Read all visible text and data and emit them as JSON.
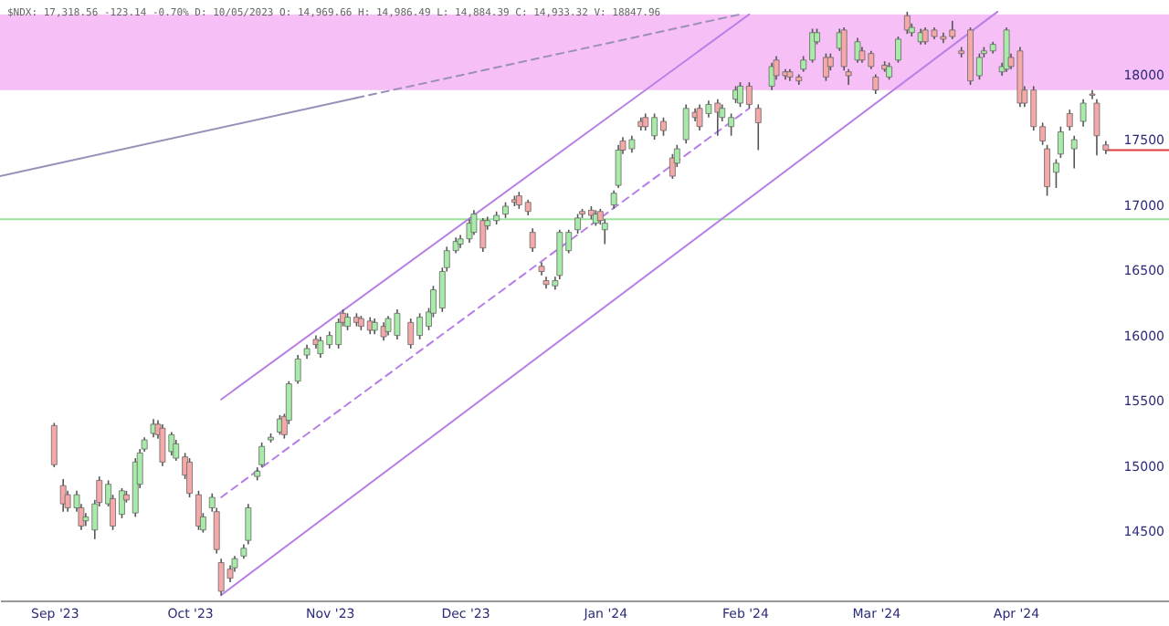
{
  "chart_data": {
    "type": "candlestick",
    "title": "$NDX: 17,318.56 -123.14 -0.70% D: 10/05/2023 O: 14,969.66 H: 14,986.49 L: 14,884.39 C: 14,933.32 V: 18847.96",
    "x": [
      "2023-09-01",
      "2023-09-03",
      "2023-09-04",
      "2023-09-06",
      "2023-09-07",
      "2023-09-08",
      "2023-09-10",
      "2023-09-11",
      "2023-09-13",
      "2023-09-14",
      "2023-09-16",
      "2023-09-17",
      "2023-09-19",
      "2023-09-20",
      "2023-09-21",
      "2023-09-23",
      "2023-09-24",
      "2023-09-25",
      "2023-09-27",
      "2023-09-28",
      "2023-09-30",
      "2023-10-01",
      "2023-10-03",
      "2023-10-04",
      "2023-10-06",
      "2023-10-07",
      "2023-10-08",
      "2023-10-10",
      "2023-10-11",
      "2023-10-13",
      "2023-10-14",
      "2023-10-16",
      "2023-10-17",
      "2023-10-19",
      "2023-10-21",
      "2023-10-22",
      "2023-10-23",
      "2023-10-25",
      "2023-10-27",
      "2023-10-29",
      "2023-10-30",
      "2023-11-01",
      "2023-11-03",
      "2023-11-04",
      "2023-11-05",
      "2023-11-07",
      "2023-11-08",
      "2023-11-10",
      "2023-11-11",
      "2023-11-13",
      "2023-11-14",
      "2023-11-16",
      "2023-11-19",
      "2023-11-21",
      "2023-11-23",
      "2023-11-24",
      "2023-11-26",
      "2023-11-27",
      "2023-11-29",
      "2023-11-30",
      "2023-12-02",
      "2023-12-03",
      "2023-12-05",
      "2023-12-06",
      "2023-12-08",
      "2023-12-10",
      "2023-12-12",
      "2023-12-13",
      "2023-12-15",
      "2023-12-16",
      "2023-12-18",
      "2023-12-19",
      "2023-12-21",
      "2023-12-22",
      "2023-12-24",
      "2023-12-26",
      "2023-12-27",
      "2023-12-29",
      "2023-12-30",
      "2023-12-31",
      "2024-01-01",
      "2024-01-03",
      "2024-01-04",
      "2024-01-05",
      "2024-01-07",
      "2024-01-09",
      "2024-01-10",
      "2024-01-12",
      "2024-01-14",
      "2024-01-16",
      "2024-01-17",
      "2024-01-19",
      "2024-01-21",
      "2024-01-22",
      "2024-01-24",
      "2024-01-26",
      "2024-01-27",
      "2024-01-29",
      "2024-01-30",
      "2024-01-31",
      "2024-02-02",
      "2024-02-04",
      "2024-02-07",
      "2024-02-08",
      "2024-02-10",
      "2024-02-11",
      "2024-02-13",
      "2024-02-14",
      "2024-02-16",
      "2024-02-17",
      "2024-02-19",
      "2024-02-20",
      "2024-02-22",
      "2024-02-23",
      "2024-02-24",
      "2024-02-26",
      "2024-02-27",
      "2024-02-29",
      "2024-03-01",
      "2024-03-03",
      "2024-03-04",
      "2024-03-06",
      "2024-03-08",
      "2024-03-09",
      "2024-03-11",
      "2024-03-12",
      "2024-03-14",
      "2024-03-16",
      "2024-03-18",
      "2024-03-20",
      "2024-03-22",
      "2024-03-24",
      "2024-03-25",
      "2024-03-27",
      "2024-03-29",
      "2024-03-30",
      "2024-03-31",
      "2024-04-02",
      "2024-04-03",
      "2024-04-05",
      "2024-04-07",
      "2024-04-08",
      "2024-04-10",
      "2024-04-11",
      "2024-04-13",
      "2024-04-14",
      "2024-04-16",
      "2024-04-18",
      "2024-04-19",
      "2024-04-21"
    ],
    "ohlc": [
      [
        15310,
        15330,
        14990,
        15010
      ],
      [
        14850,
        14900,
        14650,
        14710
      ],
      [
        14780,
        14810,
        14650,
        14680
      ],
      [
        14680,
        14810,
        14650,
        14780
      ],
      [
        14680,
        14710,
        14510,
        14540
      ],
      [
        14580,
        14640,
        14540,
        14610
      ],
      [
        14510,
        14740,
        14440,
        14710
      ],
      [
        14890,
        14920,
        14690,
        14720
      ],
      [
        14710,
        14890,
        14690,
        14860
      ],
      [
        14750,
        14780,
        14510,
        14540
      ],
      [
        14630,
        14830,
        14600,
        14810
      ],
      [
        14780,
        14810,
        14720,
        14740
      ],
      [
        14640,
        15060,
        14610,
        15030
      ],
      [
        14860,
        15130,
        14830,
        15100
      ],
      [
        15130,
        15220,
        15110,
        15200
      ],
      [
        15250,
        15360,
        15220,
        15320
      ],
      [
        15320,
        15350,
        15210,
        15240
      ],
      [
        15290,
        15320,
        15000,
        15030
      ],
      [
        15110,
        15260,
        15080,
        15240
      ],
      [
        15060,
        15200,
        15040,
        15170
      ],
      [
        15070,
        15100,
        14900,
        14930
      ],
      [
        15030,
        15060,
        14760,
        14790
      ],
      [
        14780,
        14810,
        14510,
        14540
      ],
      [
        14510,
        14640,
        14490,
        14610
      ],
      [
        14680,
        14790,
        14650,
        14760
      ],
      [
        14650,
        14680,
        14330,
        14360
      ],
      [
        14260,
        14290,
        14010,
        14040
      ],
      [
        14210,
        14240,
        14110,
        14140
      ],
      [
        14220,
        14310,
        14190,
        14290
      ],
      [
        14310,
        14400,
        14290,
        14370
      ],
      [
        14430,
        14710,
        14400,
        14680
      ],
      [
        14920,
        14990,
        14890,
        14960
      ],
      [
        15010,
        15180,
        14990,
        15150
      ],
      [
        15200,
        15250,
        15180,
        15220
      ],
      [
        15260,
        15390,
        15240,
        15360
      ],
      [
        15380,
        15400,
        15210,
        15240
      ],
      [
        15350,
        15650,
        15320,
        15630
      ],
      [
        15650,
        15850,
        15630,
        15820
      ],
      [
        15850,
        15930,
        15820,
        15900
      ],
      [
        15970,
        16000,
        15900,
        15930
      ],
      [
        15860,
        15990,
        15830,
        15960
      ],
      [
        15930,
        16030,
        15900,
        16000
      ],
      [
        15930,
        16130,
        15900,
        16100
      ],
      [
        16170,
        16200,
        16070,
        16100
      ],
      [
        16070,
        16170,
        16040,
        16140
      ],
      [
        16140,
        16170,
        16070,
        16100
      ],
      [
        16130,
        16150,
        16040,
        16070
      ],
      [
        16110,
        16140,
        16010,
        16040
      ],
      [
        16040,
        16130,
        16010,
        16100
      ],
      [
        16070,
        16100,
        15960,
        15990
      ],
      [
        16030,
        16150,
        16000,
        16130
      ],
      [
        16000,
        16200,
        15970,
        16170
      ],
      [
        16100,
        16130,
        15900,
        15930
      ],
      [
        16000,
        16170,
        15970,
        16140
      ],
      [
        16070,
        16210,
        16040,
        16180
      ],
      [
        16170,
        16380,
        16140,
        16350
      ],
      [
        16210,
        16520,
        16180,
        16490
      ],
      [
        16520,
        16680,
        16490,
        16650
      ],
      [
        16650,
        16750,
        16630,
        16720
      ],
      [
        16700,
        16770,
        16670,
        16740
      ],
      [
        16740,
        16890,
        16710,
        16860
      ],
      [
        16790,
        16960,
        16770,
        16930
      ],
      [
        16880,
        16900,
        16640,
        16670
      ],
      [
        16840,
        16910,
        16810,
        16880
      ],
      [
        16880,
        16950,
        16850,
        16920
      ],
      [
        16930,
        17020,
        16900,
        16990
      ],
      [
        17040,
        17070,
        16990,
        17020
      ],
      [
        17070,
        17100,
        16970,
        17000
      ],
      [
        17020,
        17040,
        16920,
        16950
      ],
      [
        16790,
        16820,
        16640,
        16670
      ],
      [
        16530,
        16560,
        16460,
        16490
      ],
      [
        16420,
        16450,
        16360,
        16390
      ],
      [
        16380,
        16450,
        16350,
        16420
      ],
      [
        16460,
        16810,
        16430,
        16790
      ],
      [
        16650,
        16810,
        16630,
        16790
      ],
      [
        16810,
        16930,
        16780,
        16900
      ],
      [
        16950,
        16970,
        16900,
        16930
      ],
      [
        16960,
        16990,
        16890,
        16920
      ],
      [
        16860,
        16960,
        16840,
        16930
      ],
      [
        16950,
        16970,
        16850,
        16880
      ],
      [
        16810,
        16890,
        16700,
        16860
      ],
      [
        17000,
        17110,
        16970,
        17090
      ],
      [
        17150,
        17460,
        17130,
        17420
      ],
      [
        17490,
        17520,
        17390,
        17420
      ],
      [
        17430,
        17530,
        17400,
        17500
      ],
      [
        17640,
        17670,
        17570,
        17600
      ],
      [
        17670,
        17700,
        17570,
        17600
      ],
      [
        17530,
        17700,
        17500,
        17670
      ],
      [
        17640,
        17670,
        17530,
        17570
      ],
      [
        17360,
        17390,
        17200,
        17220
      ],
      [
        17320,
        17460,
        17290,
        17430
      ],
      [
        17500,
        17770,
        17470,
        17740
      ],
      [
        17710,
        17740,
        17640,
        17670
      ],
      [
        17740,
        17770,
        17570,
        17600
      ],
      [
        17700,
        17800,
        17670,
        17770
      ],
      [
        17780,
        17810,
        17530,
        17710
      ],
      [
        17670,
        17770,
        17640,
        17740
      ],
      [
        17600,
        17700,
        17530,
        17670
      ],
      [
        17810,
        17910,
        17780,
        17880
      ],
      [
        17780,
        17940,
        17750,
        17910
      ],
      [
        17910,
        17940,
        17740,
        17770
      ],
      [
        17740,
        17770,
        17420,
        17630
      ],
      [
        17910,
        18090,
        17880,
        18060
      ],
      [
        18110,
        18140,
        17960,
        17990
      ],
      [
        18020,
        18040,
        17960,
        17990
      ],
      [
        18020,
        18040,
        17950,
        17980
      ],
      [
        17980,
        18000,
        17920,
        17950
      ],
      [
        18040,
        18140,
        18020,
        18110
      ],
      [
        18110,
        18350,
        18090,
        18320
      ],
      [
        18250,
        18350,
        18230,
        18320
      ],
      [
        18130,
        18160,
        17950,
        17980
      ],
      [
        18130,
        18160,
        18030,
        18060
      ],
      [
        18200,
        18350,
        18180,
        18320
      ],
      [
        18340,
        18360,
        18030,
        18060
      ],
      [
        18020,
        18040,
        17920,
        17990
      ],
      [
        18110,
        18280,
        18090,
        18250
      ],
      [
        18180,
        18210,
        18090,
        18110
      ],
      [
        18160,
        18180,
        18040,
        18060
      ],
      [
        17980,
        18000,
        17850,
        17880
      ],
      [
        18070,
        18100,
        18020,
        18040
      ],
      [
        17980,
        18090,
        17960,
        18060
      ],
      [
        18110,
        18290,
        18090,
        18270
      ],
      [
        18450,
        18480,
        18310,
        18340
      ],
      [
        18320,
        18390,
        18290,
        18360
      ],
      [
        18250,
        18350,
        18230,
        18320
      ],
      [
        18340,
        18360,
        18230,
        18250
      ],
      [
        18340,
        18360,
        18270,
        18290
      ],
      [
        18290,
        18320,
        18240,
        18270
      ],
      [
        18340,
        18410,
        18270,
        18290
      ],
      [
        18180,
        18210,
        18130,
        18160
      ],
      [
        18340,
        18360,
        17920,
        17950
      ],
      [
        17990,
        18160,
        17960,
        18130
      ],
      [
        18160,
        18210,
        18130,
        18180
      ],
      [
        18180,
        18250,
        18160,
        18230
      ],
      [
        18020,
        18090,
        17990,
        18060
      ],
      [
        18040,
        18360,
        18020,
        18340
      ],
      [
        18130,
        18160,
        18040,
        18060
      ],
      [
        18180,
        18210,
        17750,
        17780
      ],
      [
        17880,
        17910,
        17750,
        17780
      ],
      [
        17880,
        17910,
        17570,
        17600
      ],
      [
        17600,
        17630,
        17460,
        17490
      ],
      [
        17430,
        17460,
        17070,
        17140
      ],
      [
        17250,
        17350,
        17130,
        17320
      ],
      [
        17390,
        17600,
        17360,
        17560
      ],
      [
        17700,
        17730,
        17570,
        17600
      ],
      [
        17430,
        17530,
        17280,
        17500
      ],
      [
        17640,
        17810,
        17600,
        17780
      ],
      [
        17850,
        17880,
        17810,
        17840
      ],
      [
        17780,
        17810,
        17380,
        17530
      ],
      [
        17460,
        17490,
        17390,
        17420
      ]
    ],
    "series": [
      {
        "type": "line",
        "color": "#b77fe6",
        "x": [
          "2023-10-08",
          "2024-02-02"
        ],
        "values": [
          15510,
          18460
        ],
        "line_style": "solid"
      },
      {
        "type": "line",
        "color": "#b77fe6",
        "x": [
          "2023-10-08",
          "2024-03-28"
        ],
        "values": [
          14010,
          18480
        ],
        "line_style": "solid"
      },
      {
        "type": "line",
        "color": "#b77fe6",
        "x": [
          "2023-10-08",
          "2024-02-02"
        ],
        "values": [
          14760,
          17740
        ],
        "line_style": "dashed"
      },
      {
        "type": "line",
        "color": "#9a8fb8",
        "x": [
          "2023-08-20",
          "2023-11-07"
        ],
        "values": [
          17220,
          17820
        ],
        "line_style": "solid"
      },
      {
        "type": "line",
        "color": "#9a8fb8",
        "x": [
          "2023-11-07",
          "2024-01-31"
        ],
        "values": [
          17820,
          18460
        ],
        "line_style": "dashed"
      },
      {
        "type": "line",
        "color": "#e03c3c",
        "x": [
          "2024-04-21",
          "2024-05-05"
        ],
        "values": [
          17420,
          17420
        ],
        "line_style": "solid"
      }
    ],
    "ref_lines": [
      {
        "axis": "y",
        "value": 16890,
        "color": "#9be39b"
      }
    ],
    "bands": [
      {
        "axis": "y",
        "from": 17880,
        "to": 18460,
        "color": "#f5b8f5"
      }
    ],
    "xlim": [
      "2023-08-20",
      "2024-05-05"
    ],
    "xticks": [
      {
        "value": "2023-09-01",
        "label": "Sep '23"
      },
      {
        "value": "2023-10-01",
        "label": "Oct '23"
      },
      {
        "value": "2023-11-01",
        "label": "Nov '23"
      },
      {
        "value": "2023-12-01",
        "label": "Dec '23"
      },
      {
        "value": "2024-01-01",
        "label": "Jan '24"
      },
      {
        "value": "2024-02-01",
        "label": "Feb '24"
      },
      {
        "value": "2024-03-01",
        "label": "Mar '24"
      },
      {
        "value": "2024-04-01",
        "label": "Apr '24"
      }
    ],
    "ylim": [
      13970,
      18570
    ],
    "yticks": [
      14500,
      15000,
      15500,
      16000,
      16500,
      17000,
      17500,
      18000
    ],
    "grid": false
  }
}
